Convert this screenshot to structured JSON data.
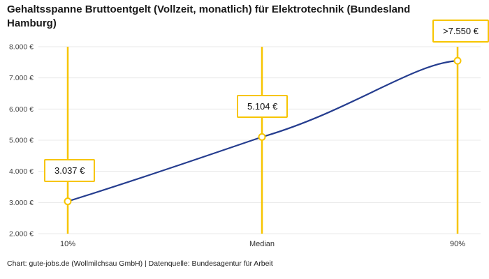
{
  "title": "Gehaltsspanne Bruttoentgelt (Vollzeit, monatlich) für Elektrotechnik (Bundesland Hamburg)",
  "footer": "Chart: gute-jobs.de (Wollmilchsau GmbH) | Datenquelle: Bundesagentur für Arbeit",
  "chart_data": {
    "type": "line",
    "title": "Gehaltsspanne Bruttoentgelt (Vollzeit, monatlich) für Elektrotechnik (Bundesland Hamburg)",
    "categories": [
      "10%",
      "Median",
      "90%"
    ],
    "values": [
      3037,
      5104,
      7550
    ],
    "point_labels": [
      "3.037 €",
      "5.104 €",
      ">7.550 €"
    ],
    "y_ticks": [
      2000,
      3000,
      4000,
      5000,
      6000,
      7000,
      8000
    ],
    "y_tick_labels": [
      "2.000 €",
      "3.000 €",
      "4.000 €",
      "5.000 €",
      "6.000 €",
      "7.000 €",
      "8.000 €"
    ],
    "ylim": [
      2000,
      8000
    ],
    "xlabel": "",
    "ylabel": "",
    "grid": "horizontal",
    "legend": "none",
    "source": "Chart: gute-jobs.de (Wollmilchsau GmbH) | Datenquelle: Bundesagentur für Arbeit",
    "colors": {
      "line": "#253d8f",
      "marker_fill": "#ffffff",
      "marker_stroke": "#f7c500",
      "vline": "#f7c500",
      "grid": "#e8e8e8",
      "annotation_border": "#f7c500",
      "background": "#ffffff"
    }
  }
}
